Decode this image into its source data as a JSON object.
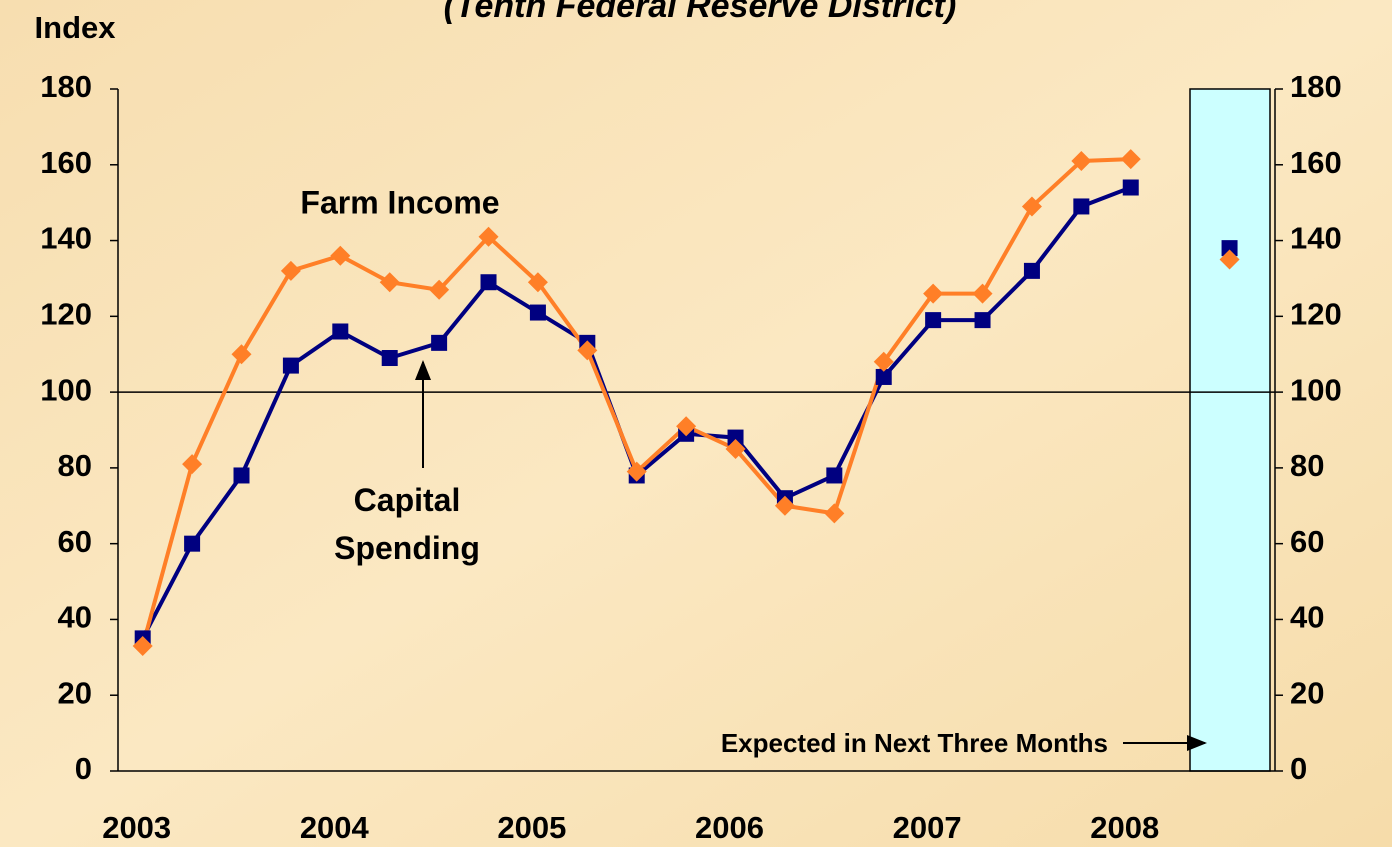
{
  "chart_data": {
    "type": "line",
    "title": "(Tenth Federal Reserve District)",
    "ylabel": "Index",
    "x": [
      2003,
      2003.25,
      2003.5,
      2003.75,
      2004,
      2004.25,
      2004.5,
      2004.75,
      2005,
      2005.25,
      2005.5,
      2005.75,
      2006,
      2006.25,
      2006.5,
      2006.75,
      2007,
      2007.25,
      2007.5,
      2007.75,
      2008
    ],
    "series": [
      {
        "name": "Capital Spending",
        "color": "#000080",
        "marker": "square",
        "values": [
          35,
          60,
          78,
          107,
          116,
          109,
          113,
          129,
          121,
          113,
          78,
          89,
          88,
          72,
          78,
          104,
          119,
          119,
          132,
          149,
          154
        ]
      },
      {
        "name": "Farm Income",
        "color": "#ff7f27",
        "marker": "diamond",
        "values": [
          33,
          81,
          110,
          132,
          136,
          129,
          127,
          141,
          129,
          111,
          79,
          91,
          85,
          70,
          68,
          108,
          126,
          126,
          149,
          161,
          161.5
        ]
      }
    ],
    "expected": {
      "label": "Expected in Next Three Months",
      "x": 2008.5,
      "values": [
        138,
        135
      ]
    },
    "xlim": [
      2002.875,
      2008.73
    ],
    "xticks": [
      2003,
      2004,
      2005,
      2006,
      2007,
      2008
    ],
    "ylim": [
      0,
      180
    ],
    "yticks": [
      0,
      20,
      40,
      60,
      80,
      100,
      120,
      140,
      160,
      180
    ],
    "reference_line": 100
  }
}
